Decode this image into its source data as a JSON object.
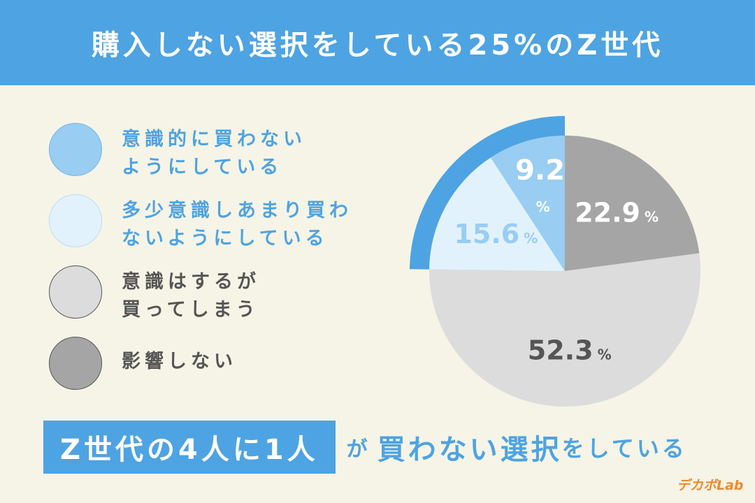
{
  "header": {
    "title": "購入しない選択をしている25%のZ世代"
  },
  "chart_data": {
    "type": "pie",
    "title": "購入しない選択をしている25%のZ世代",
    "start_angle_deg": 0,
    "direction": "clockwise",
    "slices": [
      {
        "label": "影響しない",
        "value": 22.9,
        "value_text": "22.9",
        "unit": "%",
        "color": "#a5a5a5",
        "text_color": "#ffffff"
      },
      {
        "label": "意識はするが買ってしまう",
        "value": 52.3,
        "value_text": "52.3",
        "unit": "%",
        "color": "#dcdcdc",
        "text_color": "#555555"
      },
      {
        "label": "多少意識しあまり買わないようにしている",
        "value": 15.6,
        "value_text": "15.6",
        "unit": "%",
        "color": "#e2f2fd",
        "text_color": "#99cdf2"
      },
      {
        "label": "意識的に買わないようにしている",
        "value": 9.2,
        "value_text": "9.2",
        "unit": "%",
        "color": "#99cdf2",
        "text_color": "#ffffff"
      }
    ],
    "highlight_arc_color": "#4ea3e2"
  },
  "legend": [
    {
      "label": "意識的に買わないようにしている",
      "line1": "意識的に買わない",
      "line2": "ようにしている",
      "fill": "#99cdf2",
      "border": "#6fb7ea",
      "text_color": "#4ea3e2"
    },
    {
      "label": "多少意識しあまり買わないようにしている",
      "line1": "多少意識しあまり買わ",
      "line2": "ないようにしている",
      "fill": "#e2f2fd",
      "border": "#b9dcf4",
      "text_color": "#4ea3e2"
    },
    {
      "label": "意識はするが買ってしまう",
      "line1": "意識はするが",
      "line2": "買ってしまう",
      "fill": "#dcdcdc",
      "border": "#555555",
      "text_color": "#555555"
    },
    {
      "label": "影響しない",
      "line1": "影響しない",
      "line2": "",
      "fill": "#a5a5a5",
      "border": "#555555",
      "text_color": "#555555"
    }
  ],
  "callout": {
    "boxed": "Z世代の4人に1人",
    "connector": "が",
    "emphasis": "買わない選択",
    "tail": "をしている"
  },
  "logo": {
    "text": "デカボLab",
    "color": "#ef8a2c"
  }
}
